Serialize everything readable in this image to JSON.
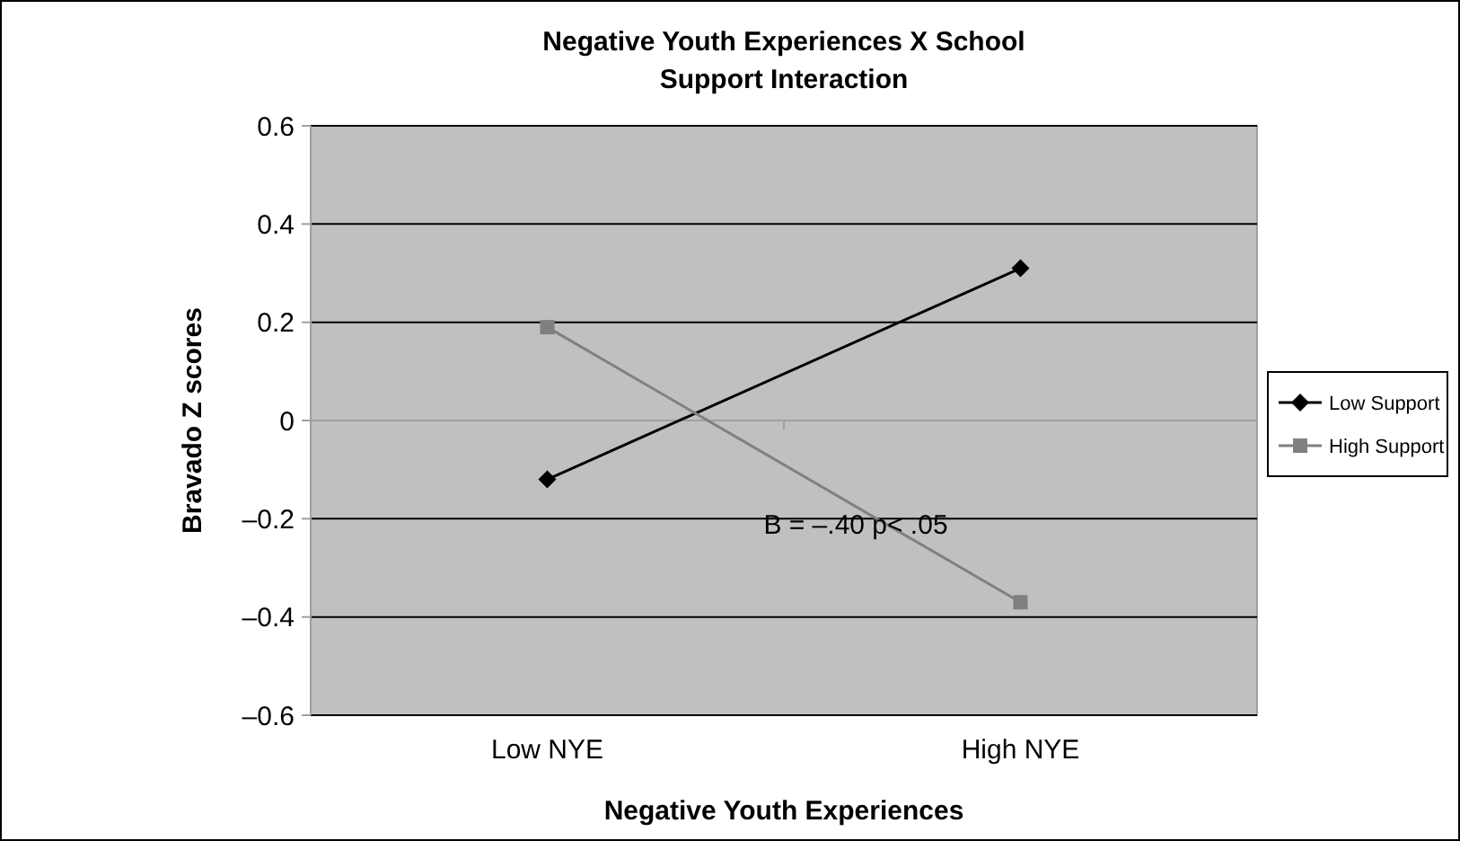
{
  "chart_data": {
    "type": "line",
    "title": "Negative Youth Experiences X School Support Interaction",
    "xlabel": "Negative Youth Experiences",
    "ylabel": "Bravado Z scores",
    "categories": [
      "Low NYE",
      "High NYE"
    ],
    "series": [
      {
        "name": "Low Support",
        "color": "#000000",
        "marker": "diamond",
        "values": [
          -0.12,
          0.31
        ]
      },
      {
        "name": "High Support",
        "color": "#808080",
        "marker": "square",
        "values": [
          0.19,
          -0.37
        ]
      }
    ],
    "ylim": [
      -0.6,
      0.6
    ],
    "yticks": [
      {
        "value": -0.6,
        "label": "–0.6"
      },
      {
        "value": -0.4,
        "label": "–0.4"
      },
      {
        "value": -0.2,
        "label": "–0.2"
      },
      0,
      0.2,
      0.4,
      0.6
    ],
    "grid": "y",
    "legend": "right",
    "annotations": [
      "B = –.40  p< .05"
    ]
  }
}
